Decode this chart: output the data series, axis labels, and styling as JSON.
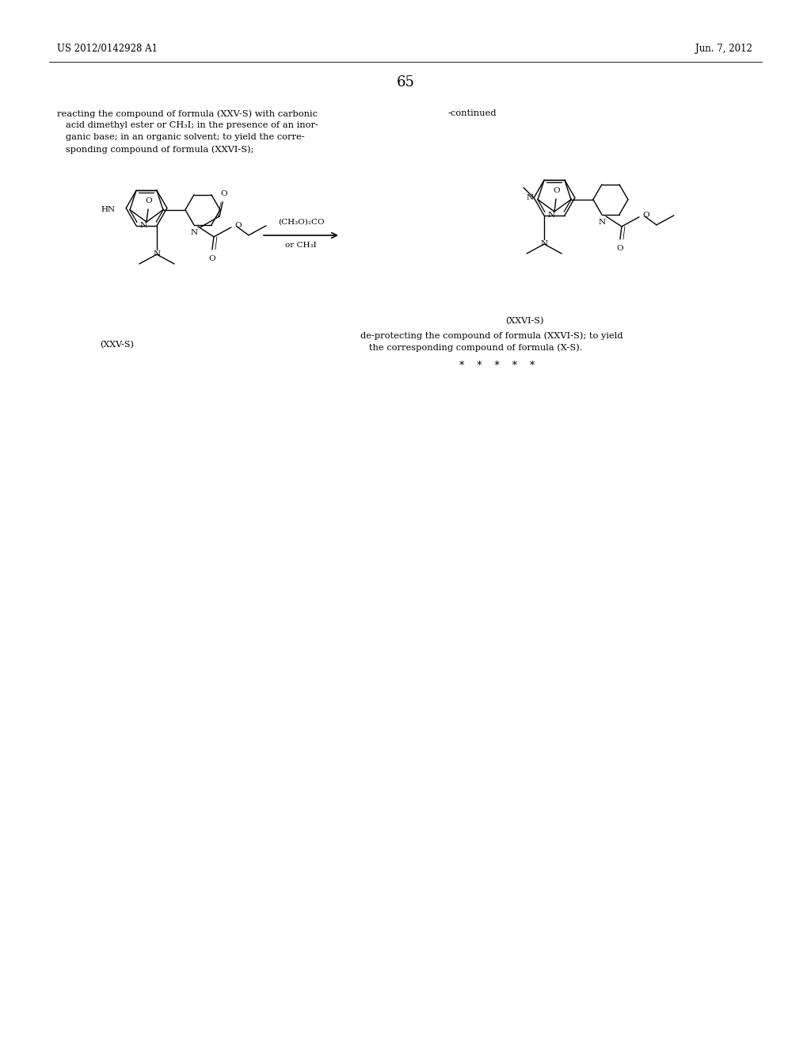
{
  "bg_color": "#ffffff",
  "header_left": "US 2012/0142928 A1",
  "header_right": "Jun. 7, 2012",
  "page_number": "65",
  "paragraph_text_line1": "reacting the compound of formula (XXV-S) with carbonic",
  "paragraph_text_line2": "   acid dimethyl ester or CH₃I; in the presence of an inor-",
  "paragraph_text_line3": "   ganic base; in an organic solvent; to yield the corre-",
  "paragraph_text_line4": "   sponding compound of formula (XXVI-S);",
  "continued_label": "-continued",
  "reaction_arrow_label_top": "(CH₃O)₂CO",
  "reaction_arrow_label_bottom": "or CH₃I",
  "label_xxvs": "(XXV-S)",
  "label_xxvis": "(XXVI-S)",
  "deprotect_line1": "de-protecting the compound of formula (XXVI-S); to yield",
  "deprotect_line2": "   the corresponding compound of formula (X-S).",
  "stars": "*    *    *    *    *"
}
